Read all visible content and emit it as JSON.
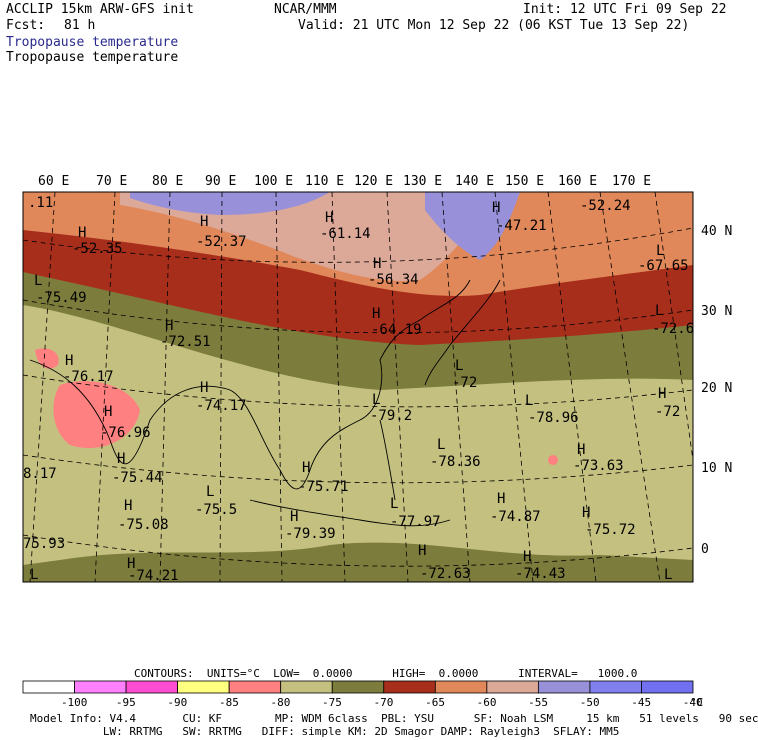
{
  "header": {
    "model": "ACCLIP 15km ARW-GFS init",
    "center": "NCAR/MMM",
    "init": "Init: 12 UTC Fri 09 Sep 22",
    "fcst_label": "Fcst:",
    "fcst_value": "81 h",
    "valid": "Valid: 21 UTC Mon 12 Sep 22 (06 KST Tue 13 Sep 22)",
    "field1": "Tropopause temperature",
    "field2": "Tropopause temperature"
  },
  "map": {
    "lon_labels": [
      "60 E",
      "70 E",
      "80 E",
      "90 E",
      "100 E",
      "110 E",
      "120 E",
      "130 E",
      "140 E",
      "150 E",
      "160 E",
      "170 E"
    ],
    "lat_labels": [
      "40 N",
      "30 N",
      "20 N",
      "10 N",
      "0"
    ],
    "features": [
      {
        "mark": "H",
        "value": "-52.35"
      },
      {
        "mark": "H",
        "value": "-52.37"
      },
      {
        "mark": "H",
        "value": "-61.14"
      },
      {
        "mark": "H",
        "value": "-47.21"
      },
      {
        "mark": "",
        "value": "-52.24"
      },
      {
        "mark": "L",
        "value": "-75.49"
      },
      {
        "mark": "H",
        "value": "-56.34"
      },
      {
        "mark": "L",
        "value": "-67.65"
      },
      {
        "mark": "H",
        "value": "-72.51"
      },
      {
        "mark": "H",
        "value": "-64.19"
      },
      {
        "mark": "L",
        "value": "-72.6"
      },
      {
        "mark": "H",
        "value": "-76.17"
      },
      {
        "mark": "H",
        "value": "-74.17"
      },
      {
        "mark": "L",
        "value": "-72"
      },
      {
        "mark": "H",
        "value": "-76.96"
      },
      {
        "mark": "L",
        "value": "-79.2"
      },
      {
        "mark": "L",
        "value": "-78.96"
      },
      {
        "mark": "H",
        "value": "-72"
      },
      {
        "mark": "H",
        "value": "-75.44"
      },
      {
        "mark": "L",
        "value": "-78.36"
      },
      {
        "mark": "H",
        "value": "-73.63"
      },
      {
        "mark": "",
        "value": "8.17"
      },
      {
        "mark": "H",
        "value": "-75.71"
      },
      {
        "mark": "L",
        "value": "-75.5"
      },
      {
        "mark": "H",
        "value": "-75.08"
      },
      {
        "mark": "H",
        "value": "-74.87"
      },
      {
        "mark": "H",
        "value": "-75.72"
      },
      {
        "mark": "H",
        "value": "-79.39"
      },
      {
        "mark": "L",
        "value": "-77.97"
      },
      {
        "mark": "",
        "value": "75.93"
      },
      {
        "mark": "H",
        "value": "-72.63"
      },
      {
        "mark": "H",
        "value": "-74.43"
      },
      {
        "mark": "",
        "value": "-74.21"
      },
      {
        "mark": "",
        "value": ".11"
      }
    ]
  },
  "contours": {
    "text": "CONTOURS:  UNITS=°C  LOW=  0.0000      HIGH=  0.0000      INTERVAL=   1000.0"
  },
  "colorbar": {
    "labels": [
      "-100",
      "-95",
      "-90",
      "-85",
      "-80",
      "-75",
      "-70",
      "-65",
      "-60",
      "-55",
      "-50",
      "-45",
      "-40"
    ],
    "unit": "°C",
    "colors": [
      "#ffffff",
      "#ff80ff",
      "#ff4cd0",
      "#ffff80",
      "#ff8080",
      "#c4c080",
      "#7c7c3c",
      "#a82e1c",
      "#e0885a",
      "#dca898",
      "#9890d8",
      "#8080ee",
      "#7070f0"
    ]
  },
  "footer": {
    "line1": "Model Info: V4.4       CU: KF        MP: WDM 6class  PBL: YSU      SF: Noah LSM     15 km   51 levels   90 sec",
    "line2": "           LW: RRTMG   SW: RRTMG   DIFF: simple KM: 2D Smagor DAMP: Rayleigh3  SFLAY: MM5"
  }
}
